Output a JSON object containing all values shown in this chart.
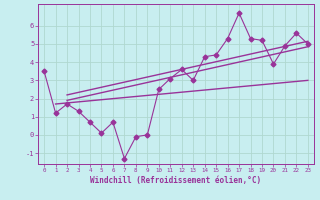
{
  "xlabel": "Windchill (Refroidissement éolien,°C)",
  "bg_color": "#c8eef0",
  "line_color": "#993399",
  "grid_color": "#b0d8d0",
  "xlim": [
    -0.5,
    23.5
  ],
  "ylim": [
    -1.6,
    7.2
  ],
  "yticks": [
    -1,
    0,
    1,
    2,
    3,
    4,
    5,
    6
  ],
  "xticks": [
    0,
    1,
    2,
    3,
    4,
    5,
    6,
    7,
    8,
    9,
    10,
    11,
    12,
    13,
    14,
    15,
    16,
    17,
    18,
    19,
    20,
    21,
    22,
    23
  ],
  "data_x": [
    0,
    1,
    2,
    3,
    4,
    5,
    6,
    7,
    8,
    9,
    10,
    11,
    12,
    13,
    14,
    15,
    16,
    17,
    18,
    19,
    20,
    21,
    22,
    23
  ],
  "data_y": [
    3.5,
    1.2,
    1.7,
    1.3,
    0.7,
    0.1,
    0.7,
    -1.3,
    -0.1,
    0.0,
    2.5,
    3.1,
    3.6,
    3.0,
    4.3,
    4.4,
    5.3,
    6.7,
    5.3,
    5.2,
    3.9,
    4.9,
    5.6,
    5.0
  ],
  "trend1_x": [
    1,
    23
  ],
  "trend1_y": [
    1.7,
    3.0
  ],
  "trend2_x": [
    2,
    23
  ],
  "trend2_y": [
    1.9,
    4.85
  ],
  "trend3_x": [
    2,
    23
  ],
  "trend3_y": [
    2.2,
    5.15
  ]
}
